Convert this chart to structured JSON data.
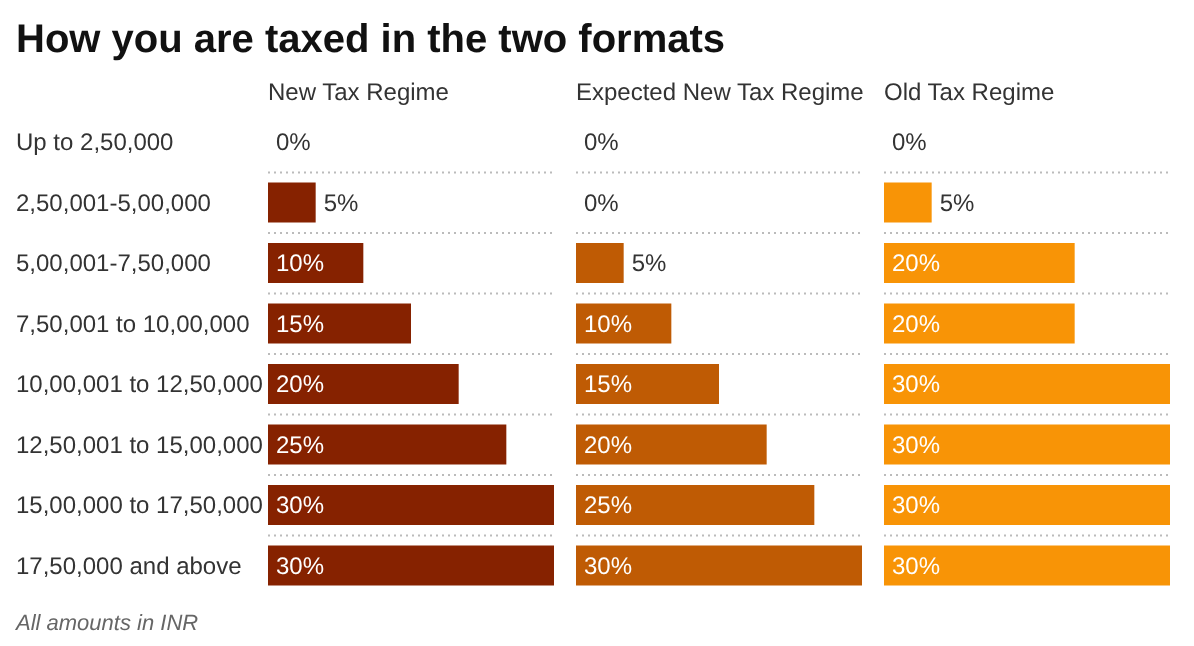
{
  "chart_data": [
    {
      "type": "bar",
      "orientation": "horizontal",
      "title": "How you are taxed in the two formats",
      "subtitle": "New Tax Regime",
      "annotations": [
        "All amounts in INR"
      ],
      "tick_labels": "y",
      "grid": "y",
      "categories": [
        "Up to 2,50,000",
        "2,50,001-5,00,000",
        "5,00,001-7,50,000",
        "7,50,001 to 10,00,000",
        "10,00,001 to 12,50,000",
        "12,50,001 to 15,00,000",
        "15,00,000 to 17,50,000",
        "17,50,000 and above"
      ],
      "series": [
        {
          "color": "#862200",
          "values": [
            0,
            5,
            10,
            15,
            20,
            25,
            30,
            30
          ],
          "value_labels": [
            "0%",
            "5%",
            "10%",
            "15%",
            "20%",
            "25%",
            "30%",
            "30%"
          ]
        }
      ]
    },
    {
      "type": "bar",
      "orientation": "horizontal",
      "subtitle": "Expected New Tax Regime",
      "tick_labels": false,
      "grid": "y",
      "categories": [
        null,
        null,
        null,
        null,
        null,
        null,
        null,
        null
      ],
      "series": [
        {
          "color": "#bf5b04",
          "values": [
            0,
            0,
            5,
            10,
            15,
            20,
            25,
            30
          ],
          "value_labels": [
            "0%",
            "0%",
            "5%",
            "10%",
            "15%",
            "20%",
            "25%",
            "30%"
          ]
        }
      ]
    },
    {
      "type": "bar",
      "orientation": "horizontal",
      "subtitle": "Old Tax Regime",
      "tick_labels": false,
      "grid": "y",
      "categories": [
        null,
        null,
        null,
        null,
        null,
        null,
        null,
        null
      ],
      "series": [
        {
          "color": "#f89406",
          "values": [
            0,
            5,
            20,
            20,
            30,
            30,
            30,
            30
          ],
          "value_labels": [
            "0%",
            "5%",
            "20%",
            "20%",
            "30%",
            "30%",
            "30%",
            "30%"
          ]
        }
      ]
    }
  ]
}
